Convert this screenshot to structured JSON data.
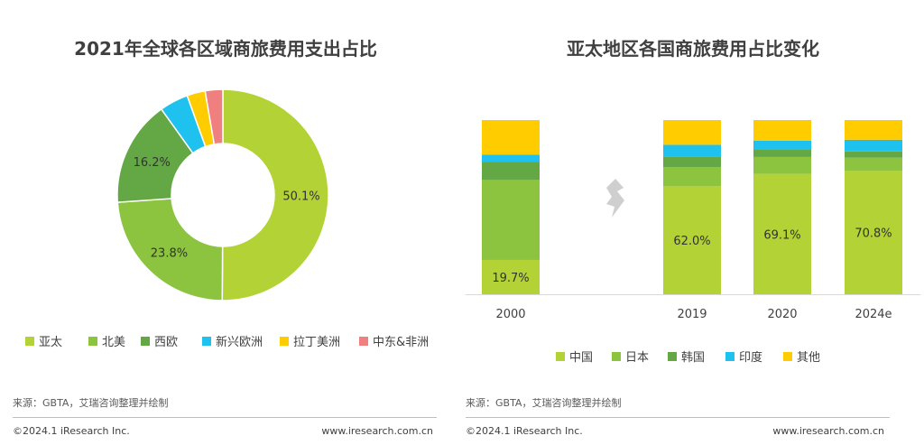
{
  "chart_data": [
    {
      "type": "pie",
      "title": "2021年全球各区域商旅费用支出占比",
      "categories": [
        "亚太",
        "北美",
        "西欧",
        "新兴欧洲",
        "拉丁美洲",
        "中东&非洲"
      ],
      "values": [
        50.1,
        23.8,
        16.2,
        4.4,
        2.8,
        2.7
      ],
      "data_labels": [
        "50.1%",
        "23.8%",
        "16.2%",
        "",
        "",
        ""
      ],
      "colors": [
        "#b2d235",
        "#8cc43f",
        "#63a844",
        "#1fc1ee",
        "#ffcc00",
        "#f08080"
      ],
      "donut": true,
      "legend_position": "bottom"
    },
    {
      "type": "bar",
      "stacked": true,
      "percent": true,
      "title": "亚太地区各国商旅费用占比变化",
      "categories": [
        "2000",
        "2019",
        "2020",
        "2024e"
      ],
      "series": [
        {
          "name": "中国",
          "values": [
            19.7,
            62.0,
            69.1,
            70.8
          ]
        },
        {
          "name": "日本",
          "values": [
            45.9,
            10.9,
            9.7,
            7.6
          ]
        },
        {
          "name": "韩国",
          "values": [
            10.3,
            6.2,
            4.1,
            3.6
          ]
        },
        {
          "name": "印度",
          "values": [
            4.2,
            6.7,
            5.2,
            6.7
          ]
        },
        {
          "name": "其他",
          "values": [
            19.9,
            14.2,
            11.9,
            11.3
          ]
        }
      ],
      "data_labels": [
        "19.7%",
        "62.0%",
        "69.1%",
        "70.8%"
      ],
      "colors": [
        "#b2d235",
        "#8cc43f",
        "#63a844",
        "#1fc1ee",
        "#ffcc00"
      ],
      "ylim": [
        0,
        100
      ],
      "axis_break_after": "2000",
      "legend_position": "bottom"
    }
  ],
  "left": {
    "source": "来源：GBTA，艾瑞咨询整理并绘制",
    "copyright": "©2024.1 iResearch Inc.",
    "site": "www.iresearch.com.cn"
  },
  "right": {
    "source": "来源：GBTA，艾瑞咨询整理并绘制",
    "copyright": "©2024.1 iResearch Inc.",
    "site": "www.iresearch.com.cn"
  }
}
